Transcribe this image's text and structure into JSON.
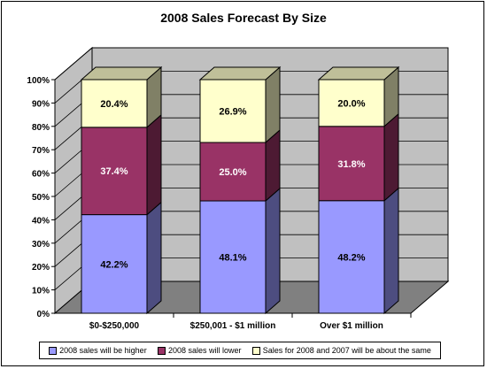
{
  "chart_data": {
    "type": "bar",
    "stacked": true,
    "percent": true,
    "three_d": true,
    "title": "2008 Sales Forecast By Size",
    "xlabel": "",
    "ylabel": "",
    "ylim": [
      0,
      100
    ],
    "yticks": [
      "0%",
      "10%",
      "20%",
      "30%",
      "40%",
      "50%",
      "60%",
      "70%",
      "80%",
      "90%",
      "100%"
    ],
    "grid": true,
    "legend_position": "bottom",
    "categories": [
      "$0-$250,000",
      "$250,001 - $1 million",
      "Over $1 million"
    ],
    "series": [
      {
        "name": "2008 sales will be higher",
        "values": [
          42.2,
          48.1,
          48.2
        ],
        "labels": [
          "42.2%",
          "48.1%",
          "48.2%"
        ],
        "color": "#9999FF",
        "label_color": "#000000"
      },
      {
        "name": "2008 sales will lower",
        "values": [
          37.4,
          25.0,
          31.8
        ],
        "labels": [
          "37.4%",
          "25.0%",
          "31.8%"
        ],
        "color": "#993366",
        "label_color": "#FFFFFF"
      },
      {
        "name": "Sales for 2008 and 2007 will be about the same",
        "values": [
          20.4,
          26.9,
          20.0
        ],
        "labels": [
          "20.4%",
          "26.9%",
          "20.0%"
        ],
        "color": "#FFFFCC",
        "label_color": "#000000"
      }
    ],
    "colors": {
      "wall": "#C0C0C0",
      "floor": "#808080"
    }
  }
}
